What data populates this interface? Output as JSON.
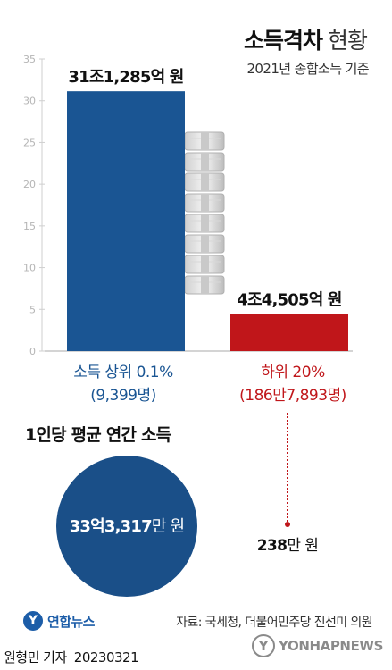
{
  "header": {
    "title_bold": "소득격차",
    "title_light": "현황",
    "subtitle": "2021년 종합소득 기준"
  },
  "chart_data": {
    "type": "bar",
    "categories": [
      "소득 상위 0.1%",
      "하위 20%"
    ],
    "values": [
      31.1285,
      4.4505
    ],
    "value_labels": [
      "31조1,285억 원",
      "4조4,505억 원"
    ],
    "unit": "조 원",
    "ylim": [
      0,
      35
    ],
    "yticks": [
      0,
      5,
      10,
      15,
      20,
      25,
      30,
      35
    ],
    "colors": [
      "#1a5593",
      "#c0161a"
    ],
    "grid": false
  },
  "groups": {
    "top": {
      "label": "소득 상위 0.1%",
      "count": "(9,399명)"
    },
    "bottom": {
      "label": "하위 20%",
      "count": "(186만7,893명)"
    }
  },
  "per_capita": {
    "title": "1인당 평균 연간 소득",
    "top_value_bold": "33억3,317",
    "top_value_unit": "만 원",
    "bottom_value_bold": "238",
    "bottom_value_unit": "만 원"
  },
  "footer": {
    "logo_mark": "Y",
    "logo_text": "연합뉴스",
    "source": "자료: 국세청, 더불어민주당 진선미 의원",
    "reporter": "원형민 기자",
    "date": "20230321",
    "watermark": "YONHAPNEWS",
    "watermark_mark": "Y"
  }
}
